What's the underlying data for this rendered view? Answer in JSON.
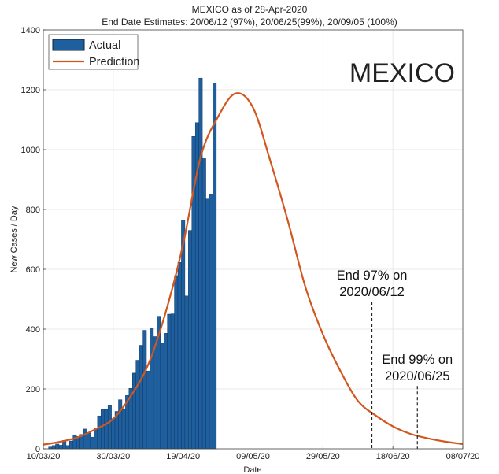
{
  "chart_data": {
    "type": "bar",
    "title": "MEXICO as of 28-Apr-2020",
    "subtitle": "End Date Estimates: 20/06/12 (97%), 20/06/25(99%), 20/09/05 (100%)",
    "xlabel": "Date",
    "ylabel": "New Cases / Day",
    "watermark_label": "MEXICO",
    "xlim": [
      "2020-03-10",
      "2020-07-08"
    ],
    "ylim": [
      0,
      1400
    ],
    "grid": true,
    "legend_position": "top-left",
    "x_ticks": [
      "10/03/20",
      "30/03/20",
      "19/04/20",
      "09/05/20",
      "29/05/20",
      "18/06/20",
      "08/07/20"
    ],
    "y_ticks": [
      "0",
      "200",
      "400",
      "600",
      "800",
      "1000",
      "1200",
      "1400"
    ],
    "series": [
      {
        "name": "Actual",
        "type": "bar",
        "color": "#1f5f9e",
        "start_date": "2020-03-12",
        "values": [
          6,
          11,
          16,
          12,
          28,
          11,
          26,
          46,
          41,
          48,
          66,
          53,
          39,
          70,
          110,
          132,
          131,
          145,
          101,
          125,
          164,
          131,
          178,
          202,
          253,
          296,
          346,
          396,
          260,
          403,
          375,
          443,
          353,
          386,
          450,
          451,
          579,
          623,
          765,
          511,
          730,
          1044,
          1090,
          1239,
          970,
          835,
          852,
          1223
        ]
      },
      {
        "name": "Prediction",
        "type": "line",
        "color": "#d2571f",
        "x": [
          "2020-03-10",
          "2020-03-15",
          "2020-03-20",
          "2020-03-25",
          "2020-03-30",
          "2020-04-04",
          "2020-04-09",
          "2020-04-14",
          "2020-04-19",
          "2020-04-24",
          "2020-04-29",
          "2020-05-04",
          "2020-05-09",
          "2020-05-14",
          "2020-05-19",
          "2020-05-24",
          "2020-05-29",
          "2020-06-03",
          "2020-06-08",
          "2020-06-13",
          "2020-06-18",
          "2020-06-23",
          "2020-06-28",
          "2020-07-03",
          "2020-07-08"
        ],
        "y": [
          14,
          24,
          39,
          66,
          100,
          176,
          281,
          456,
          684,
          975,
          1110,
          1188,
          1140,
          960,
          760,
          540,
          382,
          260,
          160,
          112,
          75,
          50,
          35,
          24,
          16
        ]
      }
    ],
    "annotations": [
      {
        "line1": "End 97% on",
        "line2": "2020/06/12",
        "date": "2020-06-12",
        "line_top": 492
      },
      {
        "line1": "End 99% on",
        "line2": "2020/06/25",
        "date": "2020-06-25",
        "line_top": 210
      }
    ]
  }
}
